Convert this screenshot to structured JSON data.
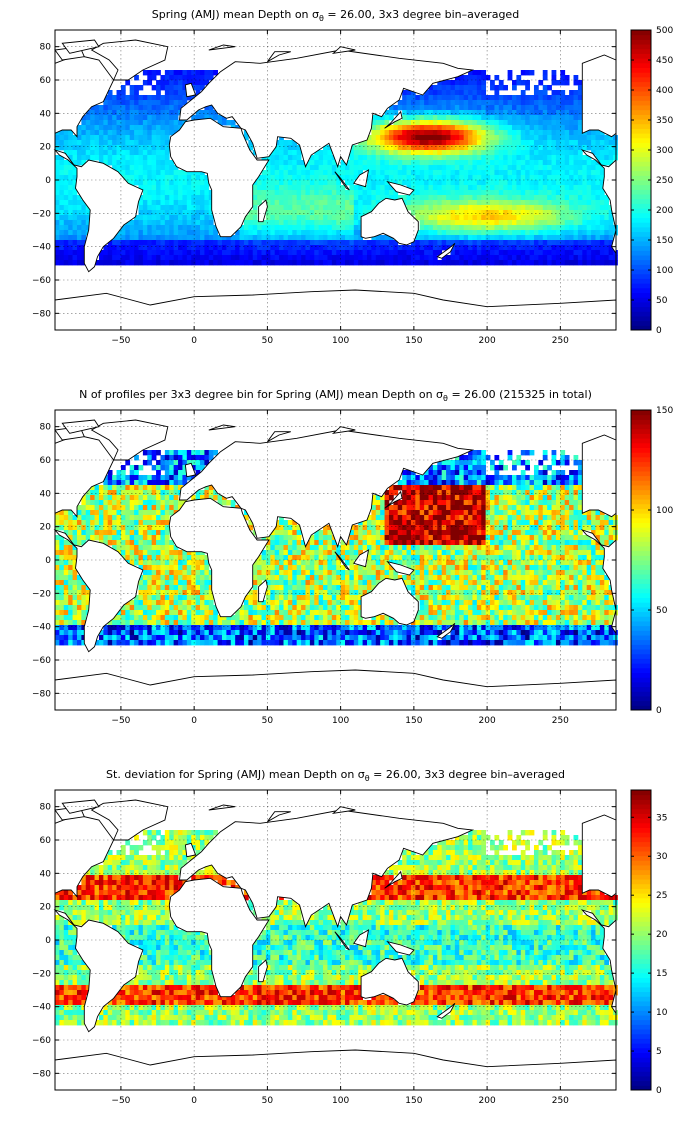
{
  "chart_data": [
    {
      "type": "heatmap",
      "title_parts": [
        "Spring (AMJ) mean Depth on σ",
        "θ",
        " = 26.00, 3x3 degree bin–averaged"
      ],
      "xticks": [
        -50,
        0,
        50,
        100,
        150,
        200,
        250
      ],
      "yticks": [
        80,
        60,
        40,
        20,
        0,
        -20,
        -40,
        -60,
        -80
      ],
      "xlim": [
        -95,
        288
      ],
      "ylim": [
        -90,
        90
      ],
      "colorbar_ticks": [
        0,
        50,
        100,
        150,
        200,
        250,
        300,
        350,
        400,
        450,
        500
      ],
      "clim": [
        0,
        500
      ],
      "colormap": "jet",
      "grid": true
    },
    {
      "type": "heatmap",
      "title_parts": [
        "N of profiles per 3x3 degree bin for Spring (AMJ) mean Depth on σ",
        "θ",
        " = 26.00 (215325 in total)"
      ],
      "xticks": [
        -50,
        0,
        50,
        100,
        150,
        200,
        250
      ],
      "yticks": [
        80,
        60,
        40,
        20,
        0,
        -20,
        -40,
        -60,
        -80
      ],
      "xlim": [
        -95,
        288
      ],
      "ylim": [
        -90,
        90
      ],
      "colorbar_ticks": [
        0,
        50,
        100,
        150
      ],
      "clim": [
        0,
        150
      ],
      "colormap": "jet",
      "grid": true
    },
    {
      "type": "heatmap",
      "title_parts": [
        "St. deviation for Spring (AMJ) mean Depth on σ",
        "θ",
        " = 26.00, 3x3 degree bin–averaged"
      ],
      "xticks": [
        -50,
        0,
        50,
        100,
        150,
        200,
        250
      ],
      "yticks": [
        80,
        60,
        40,
        20,
        0,
        -20,
        -40,
        -60,
        -80
      ],
      "xlim": [
        -95,
        288
      ],
      "ylim": [
        -90,
        90
      ],
      "colorbar_ticks": [
        0,
        5,
        10,
        15,
        20,
        25,
        30,
        35
      ],
      "clim": [
        0,
        38.5
      ],
      "colormap": "jet",
      "grid": true
    }
  ]
}
